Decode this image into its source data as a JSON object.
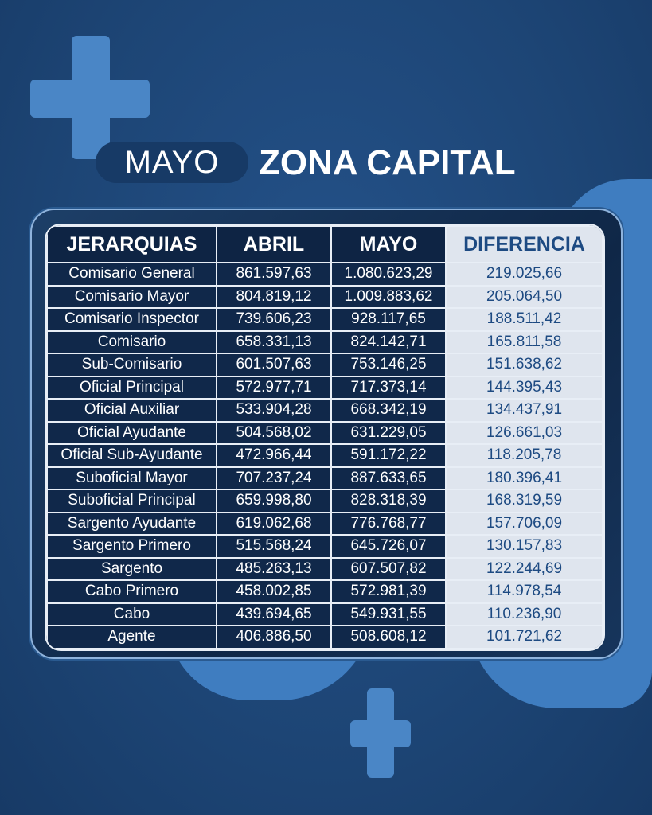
{
  "header": {
    "month_pill": "MAYO",
    "title": "ZONA CAPITAL"
  },
  "colors": {
    "background": "#1e4777",
    "accent": "#4a86c6",
    "table_dark": "#10284a",
    "diff_column": "#dfe5ee",
    "diff_text": "#1d4a82"
  },
  "table": {
    "columns": [
      "JERARQUIAS",
      "ABRIL",
      "MAYO",
      "DIFERENCIA"
    ],
    "rows": [
      [
        "Comisario General",
        "861.597,63",
        "1.080.623,29",
        "219.025,66"
      ],
      [
        "Comisario Mayor",
        "804.819,12",
        "1.009.883,62",
        "205.064,50"
      ],
      [
        "Comisario Inspector",
        "739.606,23",
        "928.117,65",
        "188.511,42"
      ],
      [
        "Comisario",
        "658.331,13",
        "824.142,71",
        "165.811,58"
      ],
      [
        "Sub-Comisario",
        "601.507,63",
        "753.146,25",
        "151.638,62"
      ],
      [
        "Oficial Principal",
        "572.977,71",
        "717.373,14",
        "144.395,43"
      ],
      [
        "Oficial Auxiliar",
        "533.904,28",
        "668.342,19",
        "134.437,91"
      ],
      [
        "Oficial Ayudante",
        "504.568,02",
        "631.229,05",
        "126.661,03"
      ],
      [
        "Oficial Sub-Ayudante",
        "472.966,44",
        "591.172,22",
        "118.205,78"
      ],
      [
        "Suboficial Mayor",
        "707.237,24",
        "887.633,65",
        "180.396,41"
      ],
      [
        "Suboficial Principal",
        "659.998,80",
        "828.318,39",
        "168.319,59"
      ],
      [
        "Sargento Ayudante",
        "619.062,68",
        "776.768,77",
        "157.706,09"
      ],
      [
        "Sargento Primero",
        "515.568,24",
        "645.726,07",
        "130.157,83"
      ],
      [
        "Sargento",
        "485.263,13",
        "607.507,82",
        "122.244,69"
      ],
      [
        "Cabo Primero",
        "458.002,85",
        "572.981,39",
        "114.978,54"
      ],
      [
        "Cabo",
        "439.694,65",
        "549.931,55",
        "110.236,90"
      ],
      [
        "Agente",
        "406.886,50",
        "508.608,12",
        "101.721,62"
      ]
    ]
  }
}
